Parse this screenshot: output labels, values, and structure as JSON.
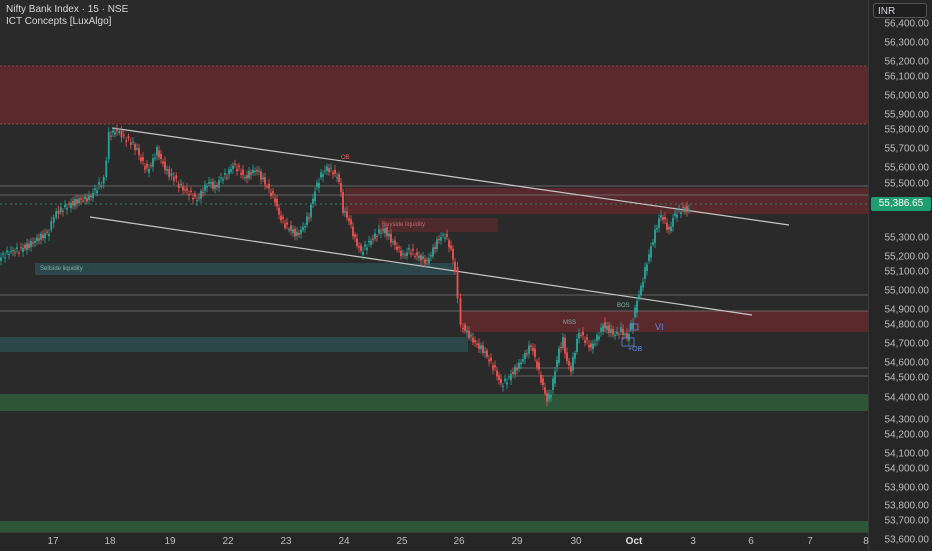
{
  "header": {
    "title": "Nifty Bank Index · 15 · NSE",
    "indicator": "ICT Concepts [LuxAlgo]"
  },
  "price_axis": {
    "currency": "INR",
    "ticks": [
      "56,400.00",
      "56,300.00",
      "56,200.00",
      "56,100.00",
      "56,000.00",
      "55,900.00",
      "55,800.00",
      "55,700.00",
      "55,600.00",
      "55,500.00",
      "55,300.00",
      "55,200.00",
      "55,100.00",
      "55,000.00",
      "54,900.00",
      "54,800.00",
      "54,700.00",
      "54,600.00",
      "54,500.00",
      "54,400.00",
      "54,300.00",
      "54,200.00",
      "54,100.00",
      "54,000.00",
      "53,900.00",
      "53,800.00",
      "53,700.00",
      "53,600.00"
    ],
    "current_price": "55,386.65"
  },
  "time_axis": {
    "labels": [
      "17",
      "18",
      "19",
      "22",
      "23",
      "24",
      "25",
      "26",
      "29",
      "30",
      "Oct",
      "3",
      "6",
      "7",
      "8"
    ]
  },
  "annotations": {
    "sellside_liquidity": "Sellside liquidity",
    "buyside_liquidity": "Buyside liquidity",
    "ob_top": "OB",
    "vi": "VI",
    "plus_ob": "+OB",
    "mss": "MSS",
    "bos": "BOS"
  },
  "colors": {
    "background": "#2a2a2a",
    "bull_candle": "#26a69a",
    "bear_candle": "#ef5350",
    "bearish_zone": "#6b2a2e",
    "bullish_zone": "#2e5a3a",
    "liquidity_zone": "#2b4a4e",
    "price_badge": "#1f9e72",
    "trendline": "#c8c8c8"
  }
}
